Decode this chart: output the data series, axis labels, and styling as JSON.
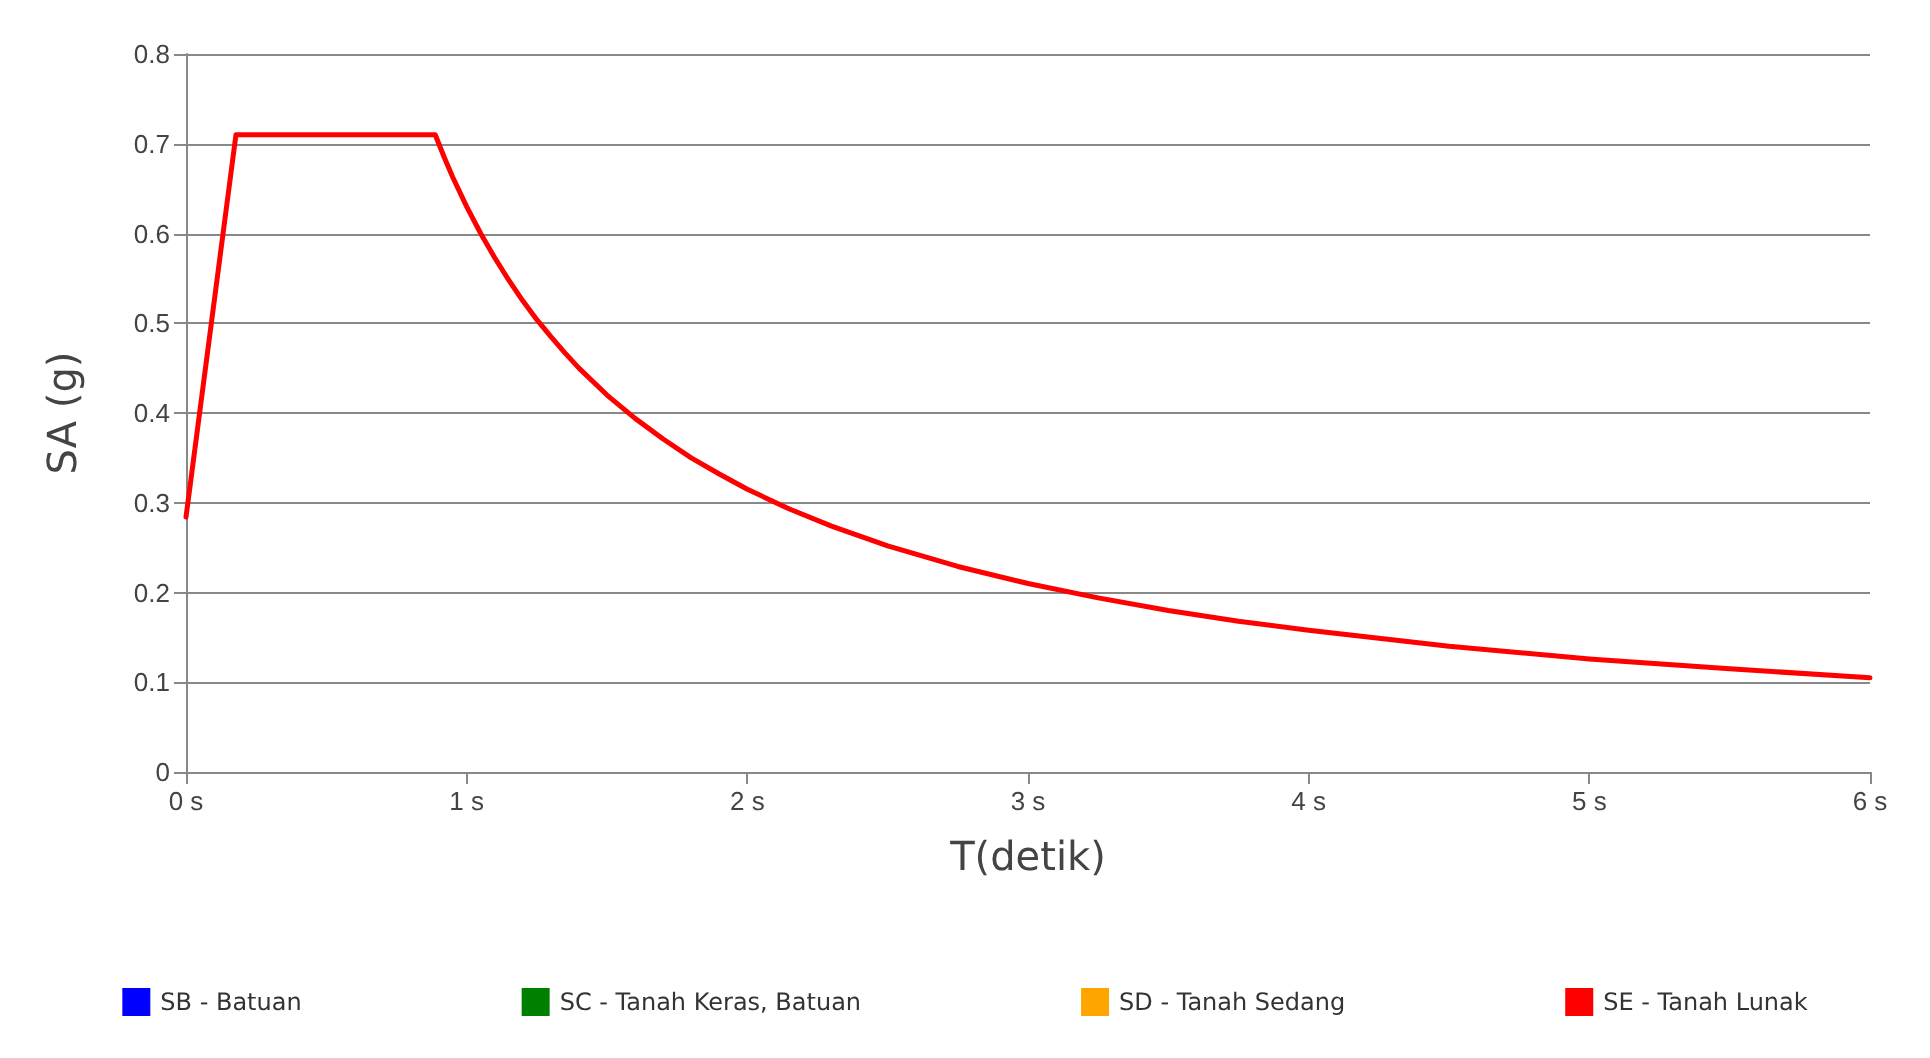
{
  "chart_data": {
    "type": "line",
    "xlabel": "T(detik)",
    "ylabel": "SA (g)",
    "xlim": [
      0,
      6
    ],
    "xticks": [
      {
        "value": 0,
        "label": "0 s"
      },
      {
        "value": 1,
        "label": "1 s"
      },
      {
        "value": 2,
        "label": "2 s"
      },
      {
        "value": 3,
        "label": "3 s"
      },
      {
        "value": 4,
        "label": "4 s"
      },
      {
        "value": 5,
        "label": "5 s"
      },
      {
        "value": 6,
        "label": "6 s"
      }
    ],
    "ylim": [
      0,
      0.8
    ],
    "yticks": [
      0,
      0.1,
      0.2,
      0.3,
      0.4,
      0.5,
      0.6,
      0.7,
      0.8
    ],
    "grid": "y",
    "legend": "bottom",
    "marker": "none",
    "line_style": "solid",
    "series": [
      {
        "name": "SB - Batuan",
        "color": "#0000ff"
      },
      {
        "name": "SC - Tanah Keras, Batuan",
        "color": "#008000"
      },
      {
        "name": "SD - Tanah Sedang",
        "color": "#ffa500"
      },
      {
        "name": "SE - Tanah Lunak",
        "color": "#ff0000",
        "x": [
          0,
          0.178,
          0.888,
          0.92,
          0.95,
          1,
          1.05,
          1.1,
          1.15,
          1.2,
          1.25,
          1.3,
          1.35,
          1.4,
          1.5,
          1.6,
          1.7,
          1.8,
          1.9,
          2,
          2.15,
          2.3,
          2.5,
          2.75,
          3,
          3.25,
          3.5,
          3.75,
          4,
          4.5,
          5,
          5.5,
          6
        ],
        "values": [
          0.284,
          0.71,
          0.71,
          0.685,
          0.663,
          0.63,
          0.6,
          0.573,
          0.548,
          0.525,
          0.504,
          0.485,
          0.467,
          0.45,
          0.42,
          0.394,
          0.371,
          0.35,
          0.332,
          0.315,
          0.293,
          0.274,
          0.252,
          0.229,
          0.21,
          0.194,
          0.18,
          0.168,
          0.158,
          0.14,
          0.126,
          0.115,
          0.105
        ]
      }
    ]
  }
}
